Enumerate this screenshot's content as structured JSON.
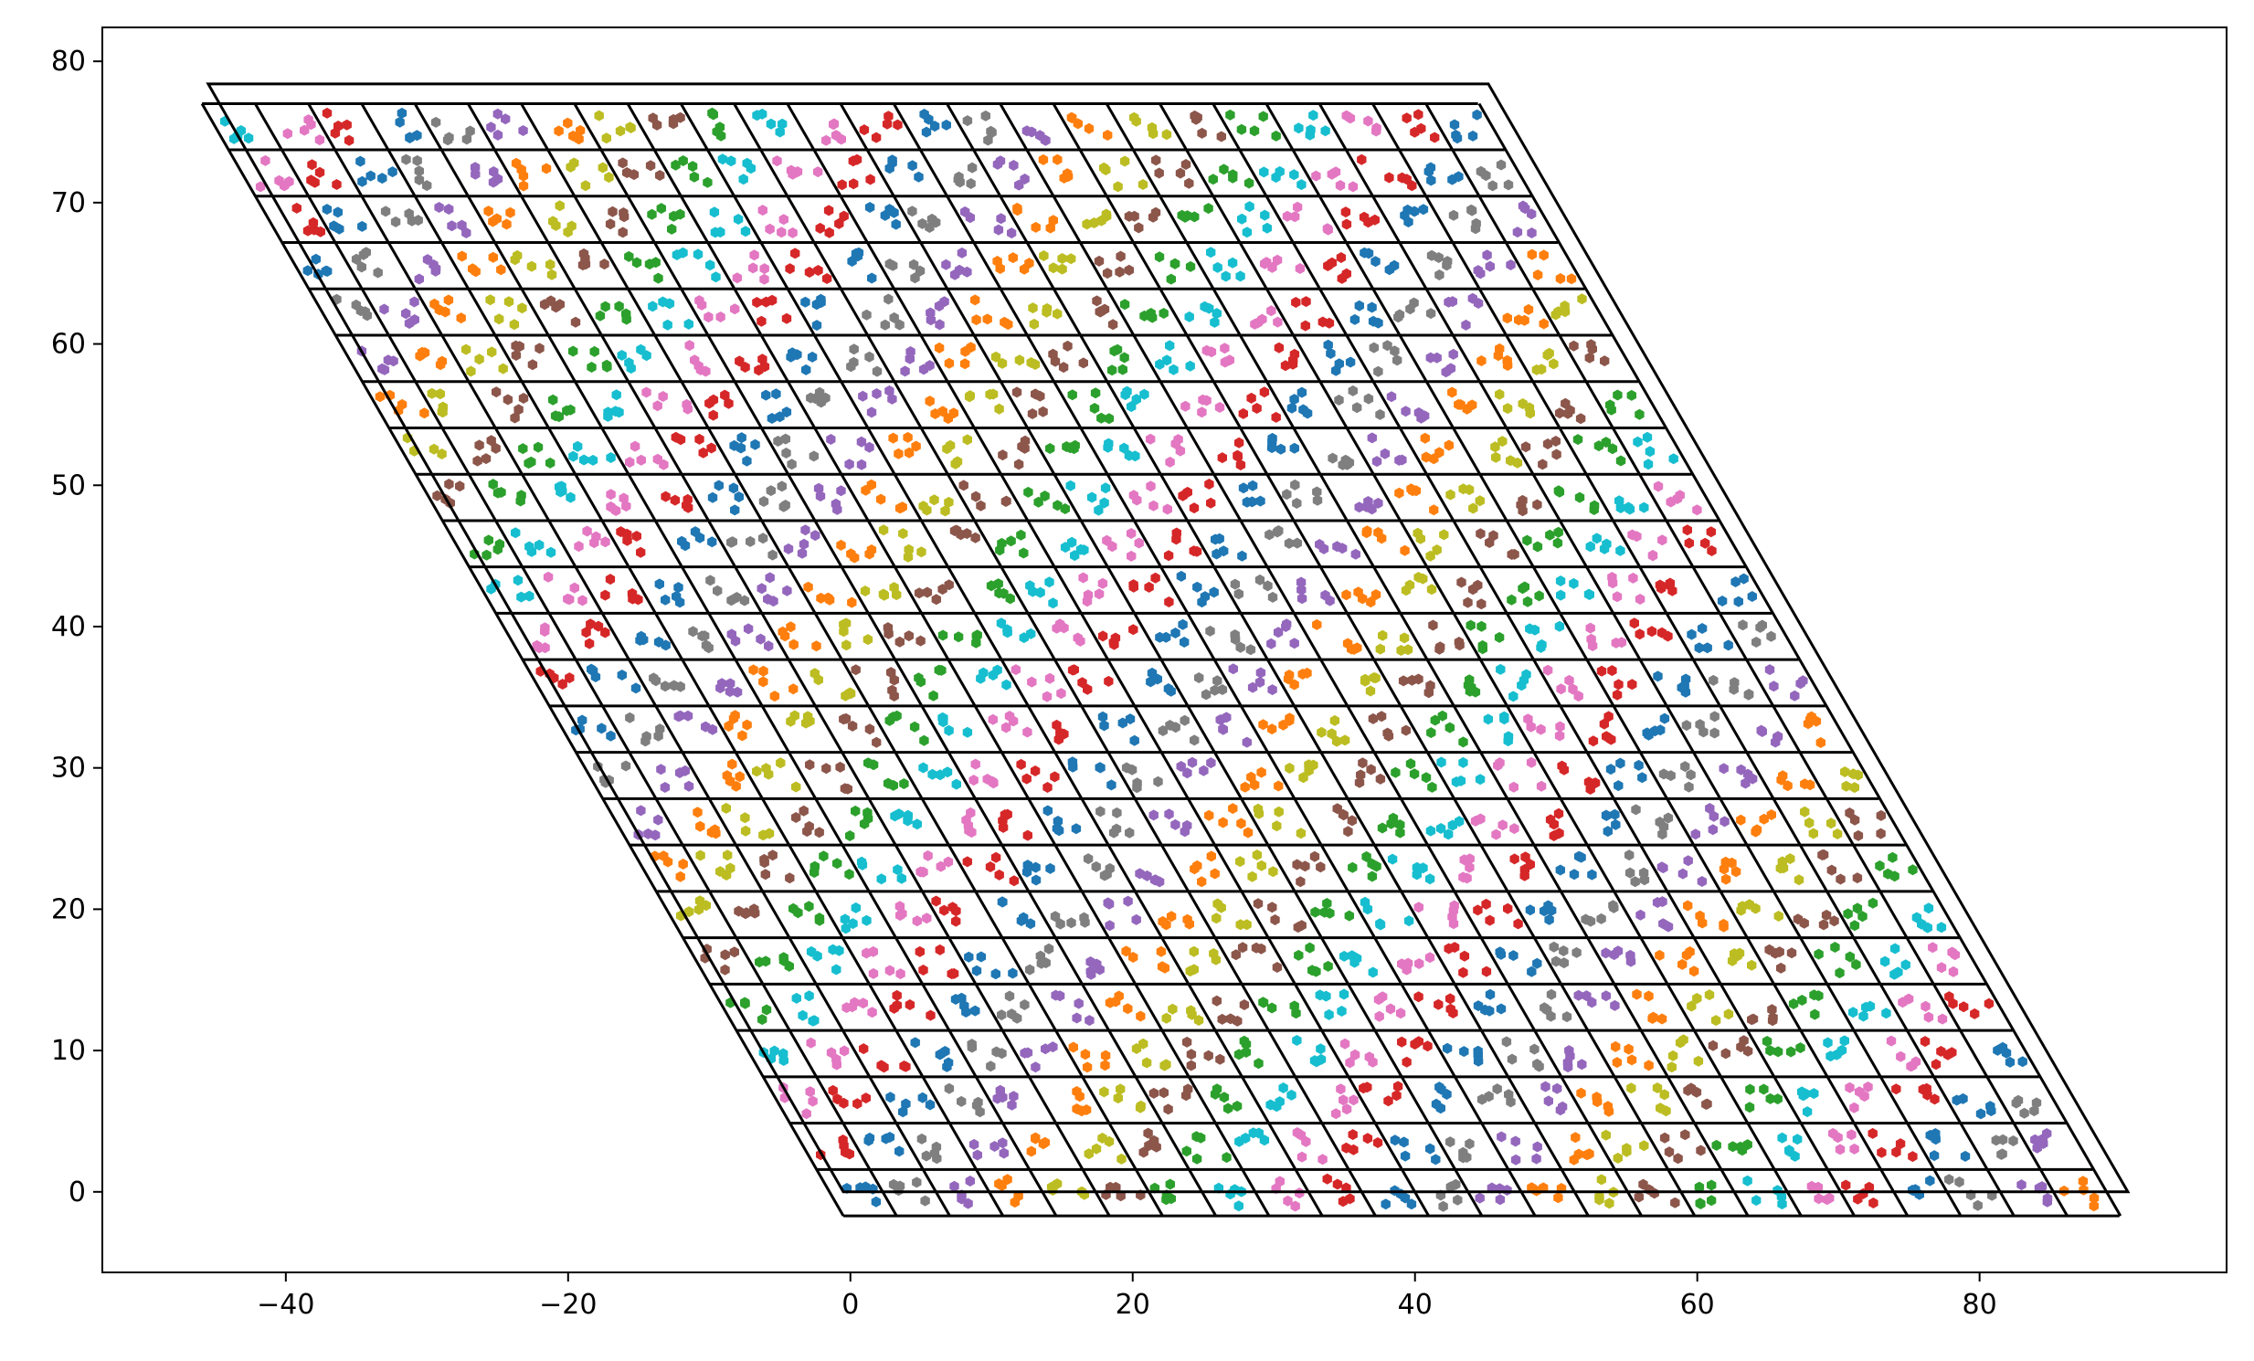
{
  "chart_data": {
    "type": "scatter",
    "title": "",
    "xlabel": "",
    "ylabel": "",
    "xlim": [
      -53,
      97.5
    ],
    "ylim": [
      -5.7,
      82.4
    ],
    "x_ticks": [
      {
        "value": -40,
        "label": "−40"
      },
      {
        "value": -20,
        "label": "−20"
      },
      {
        "value": 0,
        "label": "0"
      },
      {
        "value": 20,
        "label": "20"
      },
      {
        "value": 40,
        "label": "40"
      },
      {
        "value": 60,
        "label": "60"
      },
      {
        "value": 80,
        "label": "80"
      }
    ],
    "y_ticks": [
      {
        "value": 0,
        "label": "0"
      },
      {
        "value": 10,
        "label": "10"
      },
      {
        "value": 20,
        "label": "20"
      },
      {
        "value": 30,
        "label": "30"
      },
      {
        "value": 40,
        "label": "40"
      },
      {
        "value": 50,
        "label": "50"
      },
      {
        "value": 60,
        "label": "60"
      },
      {
        "value": 70,
        "label": "70"
      },
      {
        "value": 80,
        "label": "80"
      }
    ],
    "grid": false,
    "legend": "none",
    "outer_boundary": [
      [
        -45.5,
        78.4
      ],
      [
        45.2,
        78.4
      ],
      [
        90.5,
        0.0
      ],
      [
        -0.5,
        0.0
      ]
    ],
    "lattice": {
      "origin": [
        -0.5,
        -1.7
      ],
      "row_step": 3.28,
      "row_count": 24,
      "row_half_width": 45.2,
      "column_spacing": 3.77,
      "column_count": 25,
      "column_angle_deg": 60,
      "top_y": 77.0
    },
    "point_colors": [
      "#1f77b4",
      "#ff7f0e",
      "#2ca02c",
      "#d62728",
      "#9467bd",
      "#8c564b",
      "#e377c2",
      "#7f7f7f",
      "#bcbd22",
      "#17becf"
    ],
    "line_color": "#000000"
  }
}
